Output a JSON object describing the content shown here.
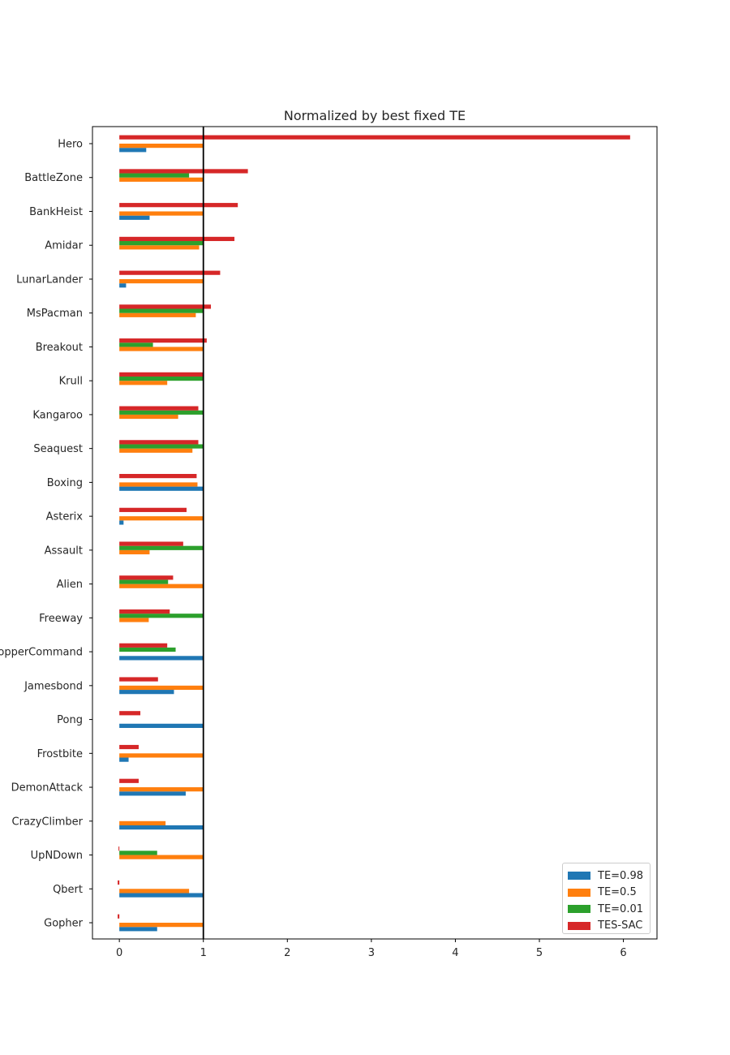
{
  "chart_data": {
    "type": "bar",
    "orientation": "horizontal",
    "title": "Normalized by best fixed TE",
    "xlabel": "",
    "ylabel": "",
    "xlim": [
      -0.32,
      6.4
    ],
    "xticks": [
      0,
      1,
      2,
      3,
      4,
      5,
      6
    ],
    "reference_line": {
      "x": 1,
      "color": "#000000"
    },
    "legend_position": "lower-right",
    "categories": [
      "Hero",
      "BattleZone",
      "BankHeist",
      "Amidar",
      "LunarLander",
      "MsPacman",
      "Breakout",
      "Krull",
      "Kangaroo",
      "Seaquest",
      "Boxing",
      "Asterix",
      "Assault",
      "Alien",
      "Freeway",
      "ChopperCommand",
      "Jamesbond",
      "Pong",
      "Frostbite",
      "DemonAttack",
      "CrazyClimber",
      "UpNDown",
      "Qbert",
      "Gopher"
    ],
    "series": [
      {
        "name": "TE=0.98",
        "color": "#1f77b4",
        "values": [
          0.32,
          0,
          0.36,
          0,
          0.08,
          0,
          0,
          0,
          0,
          0,
          1.0,
          0.05,
          0,
          0,
          0,
          1.0,
          0.65,
          1.0,
          0.11,
          0.79,
          1.0,
          0,
          1.0,
          0.45
        ]
      },
      {
        "name": "TE=0.5",
        "color": "#ff7f0e",
        "values": [
          1.0,
          1.0,
          1.0,
          0.95,
          1.0,
          0.91,
          1.0,
          0.57,
          0.7,
          0.87,
          0.93,
          1.0,
          0.36,
          1.0,
          0.35,
          0,
          1.0,
          0,
          1.0,
          1.0,
          0.55,
          1.0,
          0.83,
          1.0
        ]
      },
      {
        "name": "TE=0.01",
        "color": "#2ca02c",
        "values": [
          0,
          0.83,
          0,
          1.0,
          0,
          1.0,
          0.4,
          1.0,
          1.0,
          1.0,
          0,
          0,
          1.0,
          0.58,
          1.0,
          0.67,
          0,
          0,
          0,
          0,
          0,
          0.45,
          0,
          0
        ]
      },
      {
        "name": "TES-SAC",
        "color": "#d62728",
        "values": [
          6.08,
          1.53,
          1.41,
          1.37,
          1.2,
          1.09,
          1.04,
          1.0,
          0.94,
          0.94,
          0.92,
          0.8,
          0.76,
          0.64,
          0.6,
          0.57,
          0.46,
          0.25,
          0.23,
          0.23,
          0,
          -0.01,
          -0.02,
          -0.02
        ]
      }
    ]
  }
}
